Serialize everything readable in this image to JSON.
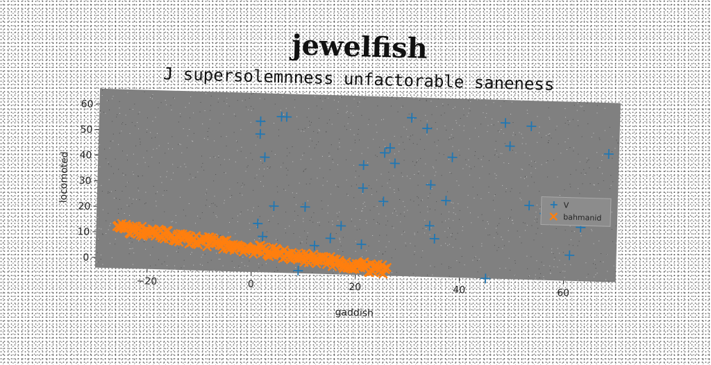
{
  "chart_data": {
    "type": "scatter",
    "suptitle": "jewelfish",
    "title": "J supersolemnness unfactorable saneness",
    "xlabel": "gaddish",
    "ylabel": "locomoted",
    "xlim": [
      -30,
      70
    ],
    "ylim": [
      -4,
      66
    ],
    "xticks": [
      -20,
      0,
      20,
      40,
      60
    ],
    "yticks": [
      0,
      10,
      20,
      30,
      40,
      50,
      60
    ],
    "grid": false,
    "legend_position": "right",
    "series": [
      {
        "name": "V",
        "marker": "plus",
        "color": "#1f77b4",
        "points": [
          [
            1,
            55
          ],
          [
            1,
            50
          ],
          [
            2,
            41
          ],
          [
            5,
            57
          ],
          [
            6,
            57
          ],
          [
            4,
            22
          ],
          [
            10,
            22
          ],
          [
            1,
            15
          ],
          [
            2,
            10
          ],
          [
            12,
            7
          ],
          [
            15,
            10
          ],
          [
            17,
            15
          ],
          [
            9,
            -3
          ],
          [
            21,
            39
          ],
          [
            21,
            30
          ],
          [
            25,
            25
          ],
          [
            21,
            8
          ],
          [
            25,
            44
          ],
          [
            26,
            46
          ],
          [
            27,
            40
          ],
          [
            30,
            58
          ],
          [
            33,
            54
          ],
          [
            34,
            32
          ],
          [
            34,
            16
          ],
          [
            35,
            11
          ],
          [
            37,
            26
          ],
          [
            38,
            43
          ],
          [
            45,
            -4
          ],
          [
            48,
            57
          ],
          [
            49,
            48
          ],
          [
            53,
            56
          ],
          [
            53,
            25
          ],
          [
            56,
            22
          ],
          [
            61,
            6
          ],
          [
            63,
            17
          ],
          [
            68,
            46
          ]
        ]
      },
      {
        "name": "bahmanid",
        "marker": "x",
        "color": "#ff7f0e",
        "line_from": [
          -26,
          12
        ],
        "line_to": [
          26,
          -2
        ],
        "count": 240,
        "thickness": 4
      }
    ]
  }
}
